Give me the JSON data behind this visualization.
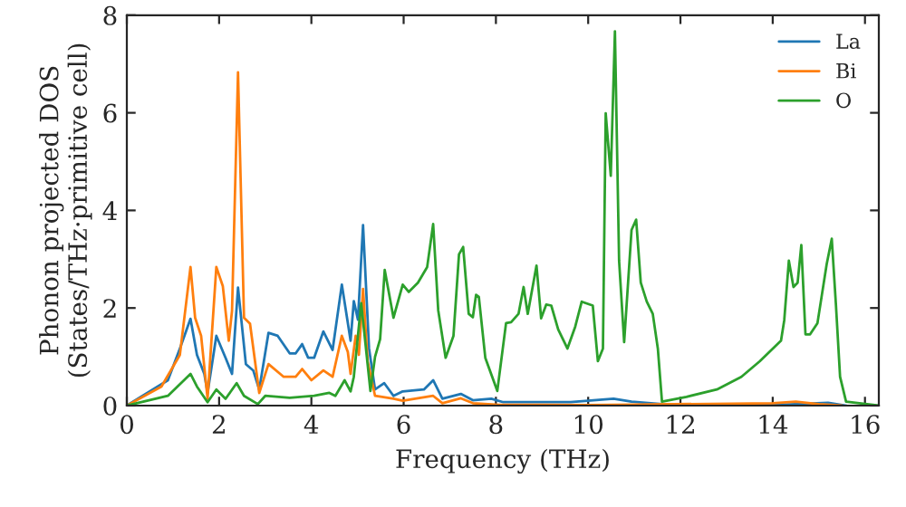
{
  "chart_data": {
    "type": "line",
    "xlabel": "Frequency (THz)",
    "ylabel": "Phonon projected DOS\n(States/THz·primitive cell)",
    "xlim": [
      0,
      16.3
    ],
    "xticks": [
      0,
      2,
      4,
      6,
      8,
      10,
      12,
      14,
      16
    ],
    "ylim": [
      0,
      8
    ],
    "yticks": [
      0,
      2,
      4,
      6,
      8
    ],
    "grid": false,
    "legend": "top right",
    "series": [
      {
        "name": "La",
        "color": "#1f77b4",
        "x": [
          0,
          0.89,
          1.15,
          1.38,
          1.52,
          1.68,
          1.75,
          1.94,
          2.14,
          2.28,
          2.41,
          2.58,
          2.74,
          2.87,
          3.07,
          3.27,
          3.53,
          3.66,
          3.8,
          3.93,
          4.06,
          4.26,
          4.46,
          4.66,
          4.85,
          4.92,
          5.01,
          5.12,
          5.25,
          5.38,
          5.58,
          5.78,
          5.98,
          6.44,
          6.64,
          6.84,
          7.24,
          7.5,
          7.9,
          8.16,
          9.62,
          10.55,
          10.94,
          11.6,
          14,
          15.2,
          15.6
        ],
        "values": [
          0,
          0.52,
          1.17,
          1.78,
          1.04,
          0.65,
          0.26,
          1.43,
          0.98,
          0.65,
          2.42,
          0.85,
          0.72,
          0.33,
          1.49,
          1.43,
          1.07,
          1.07,
          1.26,
          0.98,
          0.98,
          1.52,
          1.14,
          2.48,
          1.33,
          2.14,
          1.76,
          3.7,
          1.17,
          0.33,
          0.46,
          0.2,
          0.29,
          0.33,
          0.52,
          0.14,
          0.24,
          0.11,
          0.14,
          0.07,
          0.07,
          0.14,
          0.08,
          0.03,
          0.01,
          0.06,
          0
        ]
      },
      {
        "name": "Bi",
        "color": "#ff7f0e",
        "x": [
          0,
          0.75,
          1.15,
          1.38,
          1.48,
          1.61,
          1.75,
          1.94,
          2.08,
          2.21,
          2.28,
          2.41,
          2.54,
          2.67,
          2.87,
          3.07,
          3.4,
          3.66,
          3.8,
          4.0,
          4.26,
          4.46,
          4.66,
          4.79,
          4.85,
          4.96,
          5.03,
          5.12,
          5.22,
          5.38,
          5.78,
          5.98,
          6.64,
          6.84,
          7.24,
          7.5,
          8.0,
          10,
          11,
          14,
          14.5,
          15.0,
          15.5
        ],
        "values": [
          0,
          0.39,
          1.04,
          2.84,
          1.8,
          1.43,
          0.14,
          2.84,
          2.45,
          1.33,
          1.94,
          6.83,
          1.8,
          1.68,
          0.26,
          0.85,
          0.59,
          0.59,
          0.75,
          0.52,
          0.72,
          0.59,
          1.43,
          1.1,
          0.65,
          1.43,
          1.04,
          2.39,
          0.91,
          0.2,
          0.14,
          0.1,
          0.2,
          0.05,
          0.15,
          0.05,
          0.02,
          0.01,
          0.02,
          0.05,
          0.08,
          0.03,
          0
        ]
      },
      {
        "name": "O",
        "color": "#2ca02c",
        "x": [
          0,
          0.89,
          1.38,
          1.52,
          1.75,
          1.94,
          2.14,
          2.38,
          2.54,
          2.84,
          3.0,
          3.53,
          4.06,
          4.39,
          4.52,
          4.72,
          4.85,
          4.92,
          5.08,
          5.28,
          5.38,
          5.49,
          5.59,
          5.78,
          5.98,
          6.11,
          6.31,
          6.51,
          6.64,
          6.75,
          6.91,
          7.08,
          7.2,
          7.29,
          7.41,
          7.5,
          7.57,
          7.63,
          7.77,
          8.03,
          8.22,
          8.33,
          8.49,
          8.6,
          8.69,
          8.88,
          8.98,
          9.09,
          9.2,
          9.35,
          9.55,
          9.72,
          9.86,
          10.1,
          10.21,
          10.32,
          10.38,
          10.49,
          10.58,
          10.67,
          10.78,
          10.94,
          11.04,
          11.14,
          11.27,
          11.4,
          11.51,
          11.6,
          12.13,
          12.79,
          13.32,
          13.72,
          14.18,
          14.25,
          14.35,
          14.45,
          14.54,
          14.62,
          14.71,
          14.81,
          14.97,
          15.17,
          15.28,
          15.37,
          15.46,
          15.59,
          16.3
        ],
        "values": [
          0,
          0.2,
          0.65,
          0.39,
          0.07,
          0.33,
          0.14,
          0.46,
          0.2,
          0.03,
          0.2,
          0.16,
          0.2,
          0.26,
          0.2,
          0.52,
          0.29,
          0.59,
          2.1,
          0.3,
          1.0,
          1.36,
          2.78,
          1.8,
          2.48,
          2.33,
          2.52,
          2.84,
          3.72,
          1.95,
          0.98,
          1.43,
          3.1,
          3.25,
          1.88,
          1.81,
          2.27,
          2.23,
          0.98,
          0.3,
          1.69,
          1.71,
          1.88,
          2.43,
          1.88,
          2.87,
          1.79,
          2.07,
          2.05,
          1.56,
          1.17,
          1.62,
          2.13,
          2.05,
          0.91,
          1.17,
          5.99,
          4.71,
          7.67,
          2.97,
          1.3,
          3.6,
          3.81,
          2.52,
          2.13,
          1.88,
          1.17,
          0.08,
          0.18,
          0.33,
          0.59,
          0.91,
          1.33,
          1.75,
          2.97,
          2.43,
          2.52,
          3.29,
          1.46,
          1.46,
          1.69,
          2.9,
          3.42,
          2.07,
          0.59,
          0.08,
          0
        ]
      }
    ]
  }
}
